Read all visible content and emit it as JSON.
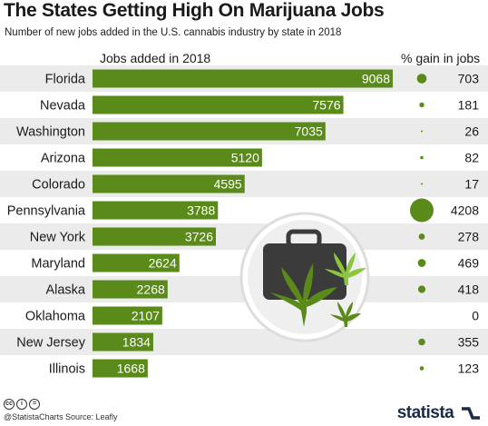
{
  "title": "The States Getting High On Marijuana Jobs",
  "subtitle": "Number of new jobs added in the U.S. cannabis industry by state in 2018",
  "header_jobs": "Jobs added in 2018",
  "header_gain": "% gain in jobs",
  "footer": {
    "handle": "@StatistaCharts",
    "source": "Source: Leafly",
    "cc_icons": [
      "cc-icon",
      "by-icon",
      "nd-icon"
    ]
  },
  "logo": {
    "text": "statista",
    "icon": "statista-wave-icon"
  },
  "colors": {
    "bar": "#5a8a19",
    "row_band": "#ebebeb",
    "bar_label": "#ffffff",
    "dot": "#5a8a19",
    "badge_bg": "#ececec",
    "briefcase": "#3b3b3b",
    "leaf": "#5a8a19",
    "leaf_light": "#8cc63f",
    "logo": "#1b2a49"
  },
  "illustration": "briefcase-with-cannabis-leaves-icon",
  "chart_data": {
    "type": "bar",
    "orientation": "horizontal",
    "categories": [
      "Florida",
      "Nevada",
      "Washington",
      "Arizona",
      "Colorado",
      "Pennsylvania",
      "New York",
      "Maryland",
      "Alaska",
      "Oklahoma",
      "New Jersey",
      "Illinois"
    ],
    "series": [
      {
        "name": "Jobs added in 2018",
        "values": [
          9068,
          7576,
          7035,
          5120,
          4595,
          3788,
          3726,
          2624,
          2268,
          2107,
          1834,
          1668
        ]
      },
      {
        "name": "% gain in jobs",
        "values": [
          703,
          181,
          26,
          82,
          17,
          4208,
          278,
          469,
          418,
          0,
          355,
          123
        ]
      }
    ],
    "xlim": [
      0,
      9068
    ],
    "grid": false,
    "legend": "none"
  }
}
